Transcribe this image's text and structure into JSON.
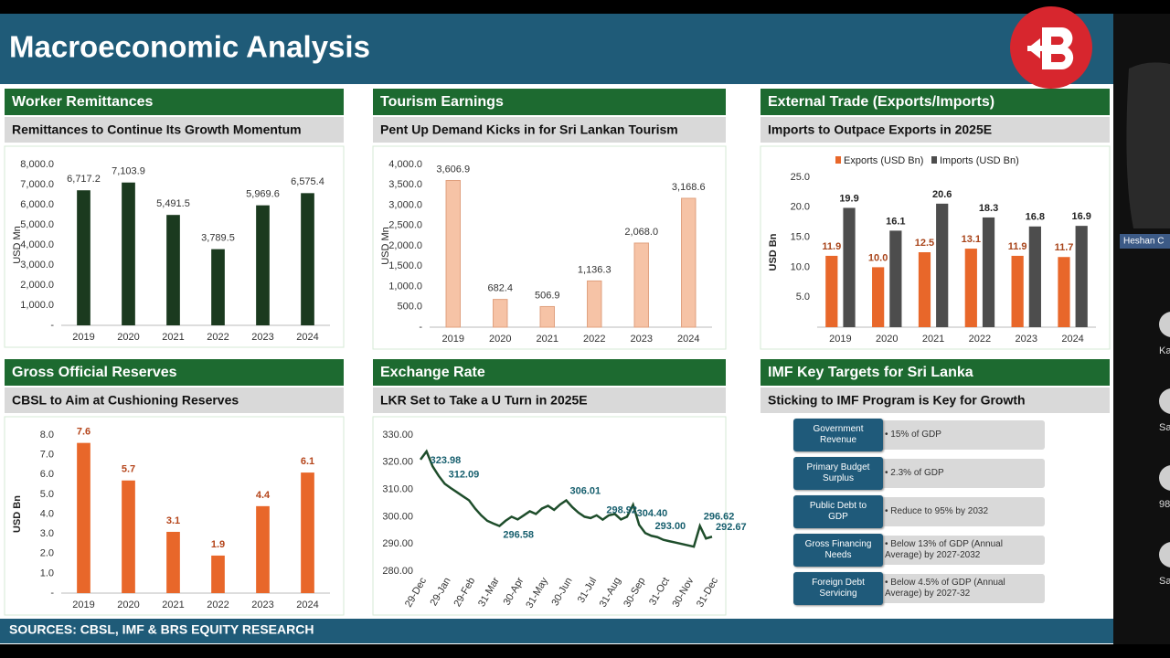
{
  "header": {
    "title": "Macroeconomic Analysis"
  },
  "chart_data": [
    {
      "type": "bar",
      "title": "Worker Remittances",
      "subtitle": "Remittances to Continue Its Growth Momentum",
      "ylabel": "USD Mn",
      "color": "#1b3a1f",
      "categories": [
        "2019",
        "2020",
        "2021",
        "2022",
        "2023",
        "2024"
      ],
      "values": [
        6717.2,
        7103.9,
        5491.5,
        3789.5,
        5969.6,
        6575.4
      ],
      "value_labels": [
        "6,717.2",
        "7,103.9",
        "5,491.5",
        "3,789.5",
        "5,969.6",
        "6,575.4"
      ],
      "ylim": [
        0,
        8000
      ],
      "yticks": [
        {
          "value": 0,
          "label": "-"
        },
        {
          "value": 1000,
          "label": "1,000.0"
        },
        {
          "value": 2000,
          "label": "2,000.0"
        },
        {
          "value": 3000,
          "label": "3,000.0"
        },
        {
          "value": 4000,
          "label": "4,000.0"
        },
        {
          "value": 5000,
          "label": "5,000.0"
        },
        {
          "value": 6000,
          "label": "6,000.0"
        },
        {
          "value": 7000,
          "label": "7,000.0"
        },
        {
          "value": 8000,
          "label": "8,000.0"
        }
      ]
    },
    {
      "type": "bar",
      "title": "Tourism Earnings",
      "subtitle": "Pent Up Demand Kicks in for Sri Lankan Tourism",
      "ylabel": "USD Mn",
      "color": "#f6c3a6",
      "categories": [
        "2019",
        "2020",
        "2021",
        "2022",
        "2023",
        "2024"
      ],
      "values": [
        3606.9,
        682.4,
        506.9,
        1136.3,
        2068.0,
        3168.6
      ],
      "value_labels": [
        "3,606.9",
        "682.4",
        "506.9",
        "1,136.3",
        "2,068.0",
        "3,168.6"
      ],
      "ylim": [
        0,
        4000
      ],
      "yticks": [
        {
          "value": 0,
          "label": "-"
        },
        {
          "value": 500,
          "label": "500.0"
        },
        {
          "value": 1000,
          "label": "1,000.0"
        },
        {
          "value": 1500,
          "label": "1,500.0"
        },
        {
          "value": 2000,
          "label": "2,000.0"
        },
        {
          "value": 2500,
          "label": "2,500.0"
        },
        {
          "value": 3000,
          "label": "3,000.0"
        },
        {
          "value": 3500,
          "label": "3,500.0"
        },
        {
          "value": 4000,
          "label": "4,000.0"
        }
      ]
    },
    {
      "type": "bar",
      "title": "External Trade (Exports/Imports)",
      "subtitle": "Imports to Outpace Exports in 2025E",
      "ylabel": "USD Bn",
      "categories": [
        "2019",
        "2020",
        "2021",
        "2022",
        "2023",
        "2024"
      ],
      "series": [
        {
          "name": "Exports (USD Bn)",
          "color": "#e8672a",
          "values": [
            11.9,
            10.0,
            12.5,
            13.1,
            11.9,
            11.7
          ],
          "value_labels": [
            "11.9",
            "10.0",
            "12.5",
            "13.1",
            "11.9",
            "11.7"
          ]
        },
        {
          "name": "Imports (USD Bn)",
          "color": "#4d4d4d",
          "values": [
            19.9,
            16.1,
            20.6,
            18.3,
            16.8,
            16.9
          ],
          "value_labels": [
            "19.9",
            "16.1",
            "20.6",
            "18.3",
            "16.8",
            "16.9"
          ]
        }
      ],
      "ylim": [
        0,
        25
      ],
      "yticks": [
        {
          "value": 5,
          "label": "5.0"
        },
        {
          "value": 10,
          "label": "10.0"
        },
        {
          "value": 15,
          "label": "15.0"
        },
        {
          "value": 20,
          "label": "20.0"
        },
        {
          "value": 25,
          "label": "25.0"
        }
      ]
    },
    {
      "type": "bar",
      "title": "Gross Official Reserves",
      "subtitle": "CBSL to Aim at Cushioning Reserves",
      "ylabel": "USD Bn",
      "color": "#e8672a",
      "categories": [
        "2019",
        "2020",
        "2021",
        "2022",
        "2023",
        "2024"
      ],
      "values": [
        7.6,
        5.7,
        3.1,
        1.9,
        4.4,
        6.1
      ],
      "ylim": [
        0,
        8
      ],
      "yticks": [
        {
          "value": 0,
          "label": "-"
        },
        {
          "value": 1,
          "label": "1.0"
        },
        {
          "value": 2,
          "label": "2.0"
        },
        {
          "value": 3,
          "label": "3.0"
        },
        {
          "value": 4,
          "label": "4.0"
        },
        {
          "value": 5,
          "label": "5.0"
        },
        {
          "value": 6,
          "label": "6.0"
        },
        {
          "value": 7,
          "label": "7.0"
        },
        {
          "value": 8,
          "label": "8.0"
        }
      ]
    },
    {
      "type": "line",
      "title": "Exchange Rate",
      "subtitle": "LKR Set to Take a U Turn in 2025E",
      "color": "#1e4d2b",
      "categories": [
        "29-Dec",
        null,
        null,
        null,
        "29-Jan",
        null,
        null,
        null,
        "29-Feb",
        null,
        null,
        null,
        "31-Mar",
        null,
        null,
        null,
        "30-Apr",
        null,
        null,
        null,
        "31-May",
        null,
        null,
        null,
        "30-Jun",
        null,
        null,
        null,
        "31-Jul",
        null,
        null,
        null,
        "31-Aug",
        null,
        null,
        null,
        "30-Sep",
        null,
        null,
        null,
        "31-Oct",
        null,
        null,
        null,
        "30-Nov",
        null,
        null,
        null,
        "31-Dec"
      ],
      "values": [
        321.0,
        323.98,
        318.5,
        315.0,
        312.09,
        310.5,
        309.0,
        307.5,
        306.0,
        303.0,
        300.5,
        298.5,
        297.5,
        296.58,
        298.5,
        300.0,
        299.0,
        300.5,
        302.0,
        301.0,
        303.0,
        304.0,
        302.5,
        304.5,
        306.01,
        303.5,
        301.5,
        300.0,
        299.5,
        300.5,
        298.92,
        300.5,
        301.0,
        299.0,
        300.0,
        304.4,
        297.0,
        294.0,
        293.0,
        292.5,
        291.5,
        291.0,
        290.5,
        290.0,
        289.5,
        289.0,
        296.62,
        292.0,
        292.67
      ],
      "value_labels": [
        null,
        "323.98",
        null,
        null,
        "312.09",
        null,
        null,
        null,
        null,
        null,
        null,
        null,
        null,
        "296.58",
        null,
        null,
        null,
        null,
        null,
        null,
        null,
        null,
        null,
        null,
        "306.01",
        null,
        null,
        null,
        null,
        null,
        "298.92",
        null,
        null,
        null,
        null,
        "304.40",
        null,
        null,
        "293.00",
        null,
        null,
        null,
        null,
        null,
        null,
        null,
        "296.62",
        null,
        "292.67"
      ],
      "ylim": [
        280,
        330
      ],
      "yticks": [
        {
          "value": 280,
          "label": "280.00"
        },
        {
          "value": 290,
          "label": "290.00"
        },
        {
          "value": 300,
          "label": "300.00"
        },
        {
          "value": 310,
          "label": "310.00"
        },
        {
          "value": 320,
          "label": "320.00"
        },
        {
          "value": 330,
          "label": "330.00"
        }
      ]
    }
  ],
  "imf_panel": {
    "title": "IMF Key Targets for Sri Lanka",
    "subtitle": "Sticking to IMF Program is Key for Growth",
    "rows": [
      {
        "label": "Government Revenue",
        "value": "• 15% of GDP"
      },
      {
        "label": "Primary Budget Surplus",
        "value": "• 2.3% of GDP"
      },
      {
        "label": "Public Debt to GDP",
        "value": "• Reduce to 95% by 2032"
      },
      {
        "label": "Gross Financing Needs",
        "value": "• Below 13% of GDP (Annual Average) by 2027-2032"
      },
      {
        "label": "Foreign Debt Servicing",
        "value": "• Below 4.5% of GDP (Annual Average) by 2027-32"
      }
    ]
  },
  "footer": {
    "sources": "SOURCES: CBSL, IMF & BRS EQUITY RESEARCH"
  },
  "participants": {
    "label": "Heshan C",
    "side_labels": [
      "Ka",
      "Sa",
      "98",
      "Sa"
    ]
  }
}
